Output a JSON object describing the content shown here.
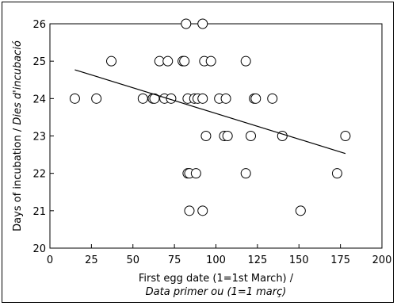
{
  "chart_data": {
    "type": "scatter",
    "xlabel_line1": "First egg date (1=1st March) /",
    "xlabel_line2": "Data primer ou (1=1 març)",
    "ylabel_main": "Days of incubation / ",
    "ylabel_italic": "Dies d'incubació",
    "xlim": [
      0,
      200
    ],
    "ylim": [
      20,
      26
    ],
    "xticks": [
      0,
      25,
      50,
      75,
      100,
      125,
      150,
      175,
      200
    ],
    "yticks": [
      20,
      21,
      22,
      23,
      24,
      25,
      26
    ],
    "grid": false,
    "trendline": {
      "x": [
        15,
        178
      ],
      "y": [
        24.77,
        22.53
      ]
    },
    "points": [
      {
        "x": 15,
        "y": 24
      },
      {
        "x": 28,
        "y": 24
      },
      {
        "x": 37,
        "y": 25
      },
      {
        "x": 56,
        "y": 24
      },
      {
        "x": 62,
        "y": 24
      },
      {
        "x": 63,
        "y": 24
      },
      {
        "x": 66,
        "y": 25
      },
      {
        "x": 69,
        "y": 24
      },
      {
        "x": 71,
        "y": 25
      },
      {
        "x": 73,
        "y": 24
      },
      {
        "x": 80,
        "y": 25
      },
      {
        "x": 81,
        "y": 25
      },
      {
        "x": 82,
        "y": 26
      },
      {
        "x": 83,
        "y": 24
      },
      {
        "x": 83,
        "y": 22
      },
      {
        "x": 84,
        "y": 21
      },
      {
        "x": 84,
        "y": 22
      },
      {
        "x": 87,
        "y": 24
      },
      {
        "x": 88,
        "y": 22
      },
      {
        "x": 89,
        "y": 24
      },
      {
        "x": 92,
        "y": 24
      },
      {
        "x": 92,
        "y": 21
      },
      {
        "x": 92,
        "y": 26
      },
      {
        "x": 93,
        "y": 25
      },
      {
        "x": 94,
        "y": 23
      },
      {
        "x": 97,
        "y": 25
      },
      {
        "x": 102,
        "y": 24
      },
      {
        "x": 105,
        "y": 23
      },
      {
        "x": 106,
        "y": 24
      },
      {
        "x": 107,
        "y": 23
      },
      {
        "x": 118,
        "y": 25
      },
      {
        "x": 118,
        "y": 22
      },
      {
        "x": 121,
        "y": 23
      },
      {
        "x": 123,
        "y": 24
      },
      {
        "x": 124,
        "y": 24
      },
      {
        "x": 134,
        "y": 24
      },
      {
        "x": 140,
        "y": 23
      },
      {
        "x": 151,
        "y": 21
      },
      {
        "x": 173,
        "y": 22
      },
      {
        "x": 178,
        "y": 23
      }
    ]
  }
}
